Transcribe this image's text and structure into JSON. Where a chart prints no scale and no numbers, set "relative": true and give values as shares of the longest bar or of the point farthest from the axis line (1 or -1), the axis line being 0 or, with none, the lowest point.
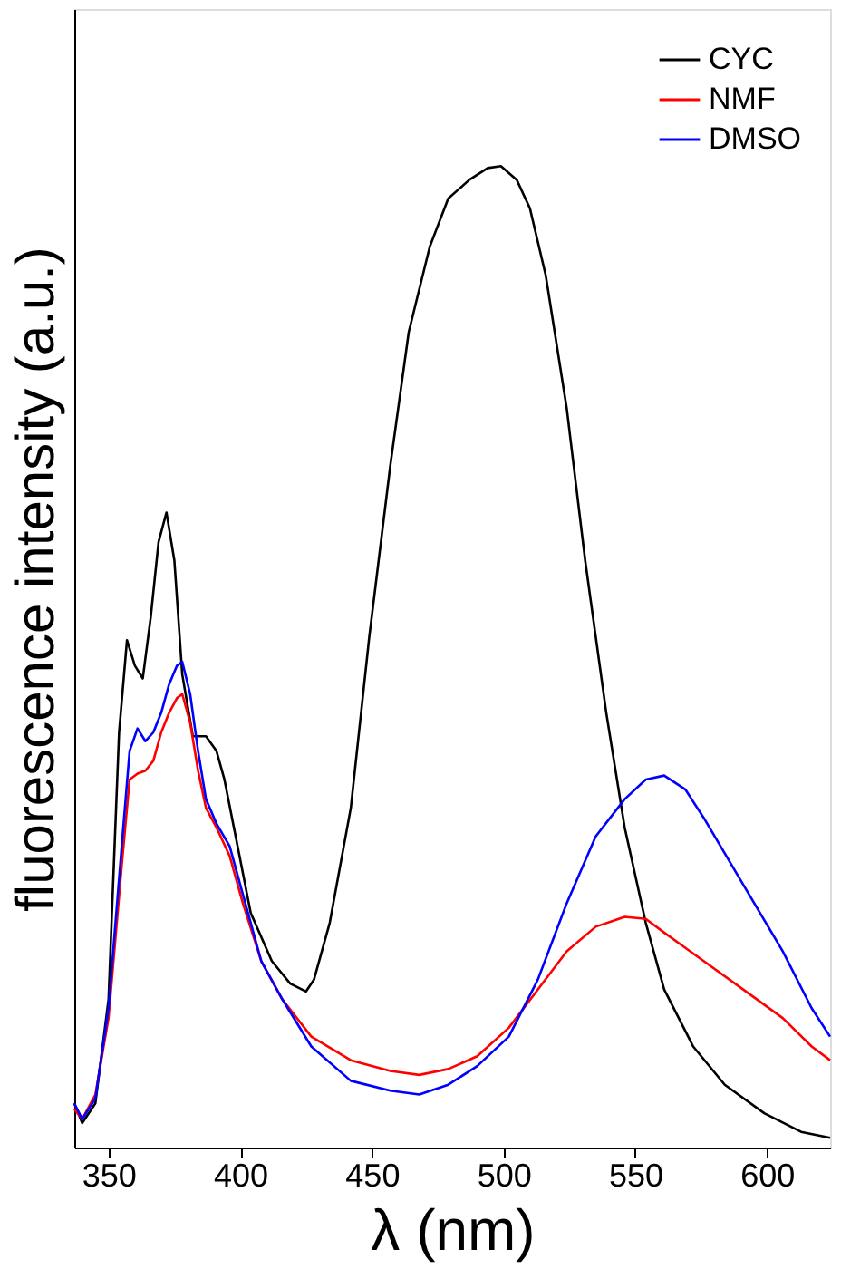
{
  "chart_data": {
    "type": "line",
    "xlabel": "λ (nm)",
    "ylabel": "fluorescence intensity (a.u.)",
    "relative": true,
    "xlim": [
      337,
      624
    ],
    "xticks": [
      350,
      400,
      450,
      500,
      550,
      600
    ],
    "grid": false,
    "legend": "top right",
    "marker": "none",
    "line_style": "solid",
    "series": [
      {
        "name": "CYC",
        "color": "#000000",
        "x": [
          337,
          340,
          345,
          350,
          354,
          357,
          360,
          363,
          366,
          369,
          372,
          375,
          378,
          382,
          387,
          391,
          394,
          399,
          404,
          412,
          419,
          425,
          428,
          434,
          442,
          449,
          457,
          464,
          472,
          479,
          487,
          494,
          499,
          505,
          510,
          516,
          524,
          531,
          539,
          546,
          554,
          561,
          572,
          584,
          599,
          613,
          624
        ],
        "values": [
          0.045,
          0.025,
          0.045,
          0.151,
          0.423,
          0.517,
          0.491,
          0.478,
          0.54,
          0.617,
          0.647,
          0.598,
          0.482,
          0.419,
          0.419,
          0.404,
          0.375,
          0.307,
          0.239,
          0.19,
          0.167,
          0.159,
          0.171,
          0.229,
          0.346,
          0.52,
          0.695,
          0.831,
          0.918,
          0.967,
          0.986,
          0.998,
          1,
          0.986,
          0.957,
          0.889,
          0.753,
          0.598,
          0.443,
          0.326,
          0.229,
          0.161,
          0.103,
          0.064,
          0.035,
          0.016,
          0.01
        ]
      },
      {
        "name": "NMF",
        "color": "#ff0000",
        "x": [
          337,
          340,
          345,
          350,
          355,
          358,
          361,
          364,
          367,
          370,
          373,
          376,
          378,
          381,
          384,
          387,
          391,
          396,
          401,
          408,
          416,
          427,
          442,
          457,
          468,
          479,
          490,
          502,
          513,
          524,
          535,
          546,
          554,
          561,
          576,
          591,
          606,
          617,
          624
        ],
        "values": [
          0.039,
          0.029,
          0.054,
          0.132,
          0.287,
          0.375,
          0.381,
          0.384,
          0.394,
          0.423,
          0.443,
          0.458,
          0.462,
          0.433,
          0.384,
          0.346,
          0.326,
          0.297,
          0.249,
          0.19,
          0.151,
          0.113,
          0.089,
          0.078,
          0.074,
          0.08,
          0.093,
          0.122,
          0.161,
          0.2,
          0.225,
          0.235,
          0.233,
          0.219,
          0.19,
          0.161,
          0.132,
          0.103,
          0.089
        ]
      },
      {
        "name": "DMSO",
        "color": "#0000ff",
        "x": [
          337,
          340,
          345,
          350,
          355,
          358,
          361,
          364,
          367,
          370,
          373,
          376,
          378,
          381,
          384,
          387,
          391,
          396,
          401,
          408,
          416,
          427,
          442,
          457,
          468,
          479,
          490,
          502,
          513,
          524,
          535,
          546,
          554,
          561,
          569,
          576,
          591,
          606,
          617,
          624
        ],
        "values": [
          0.045,
          0.029,
          0.05,
          0.142,
          0.307,
          0.404,
          0.427,
          0.414,
          0.423,
          0.443,
          0.472,
          0.491,
          0.495,
          0.462,
          0.404,
          0.355,
          0.33,
          0.307,
          0.258,
          0.19,
          0.151,
          0.103,
          0.068,
          0.058,
          0.054,
          0.064,
          0.083,
          0.113,
          0.171,
          0.249,
          0.317,
          0.355,
          0.375,
          0.379,
          0.365,
          0.336,
          0.268,
          0.2,
          0.142,
          0.113
        ]
      }
    ]
  }
}
